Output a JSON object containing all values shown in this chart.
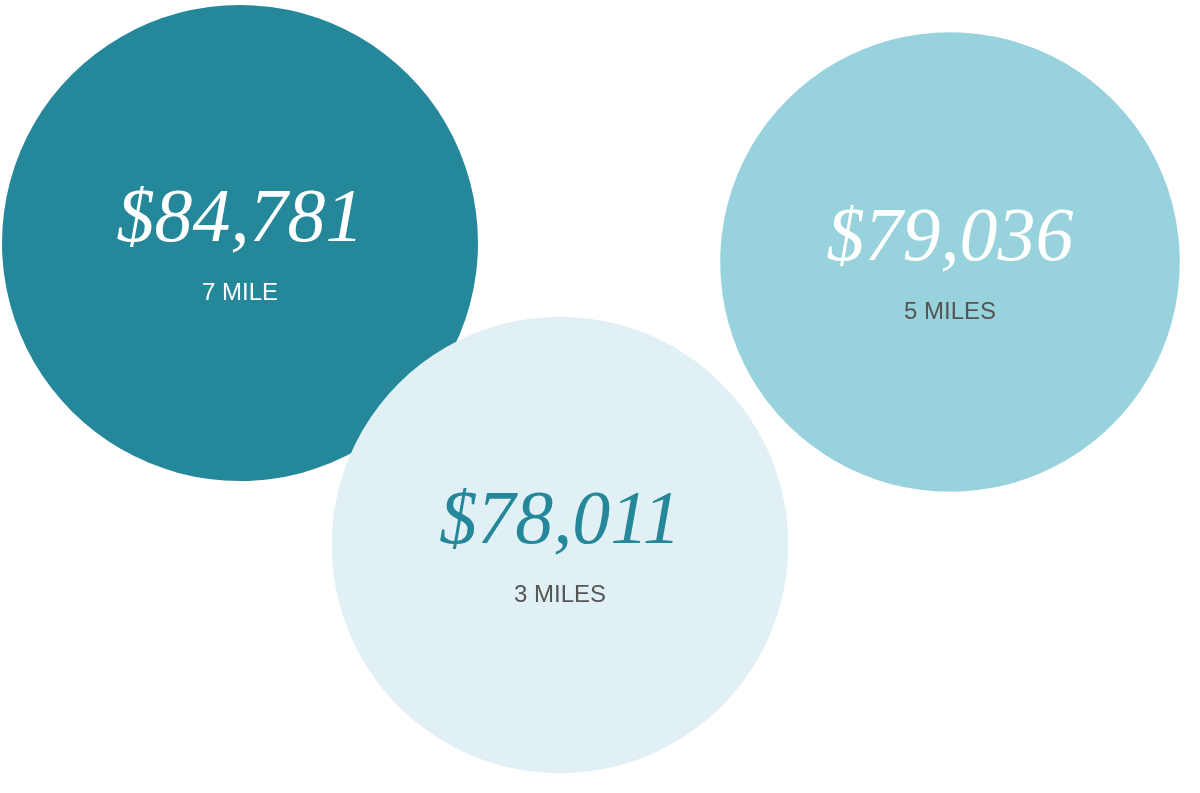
{
  "chart_data": {
    "type": "other",
    "categories": [
      "7 MILE",
      "3 MILES",
      "5 MILES"
    ],
    "values": [
      84781,
      78011,
      79036
    ],
    "value_labels": [
      "$84,781",
      "$78,011",
      "$79,036"
    ],
    "colors": [
      "#25889a",
      "#e0f0f5",
      "#98d2dd"
    ]
  }
}
